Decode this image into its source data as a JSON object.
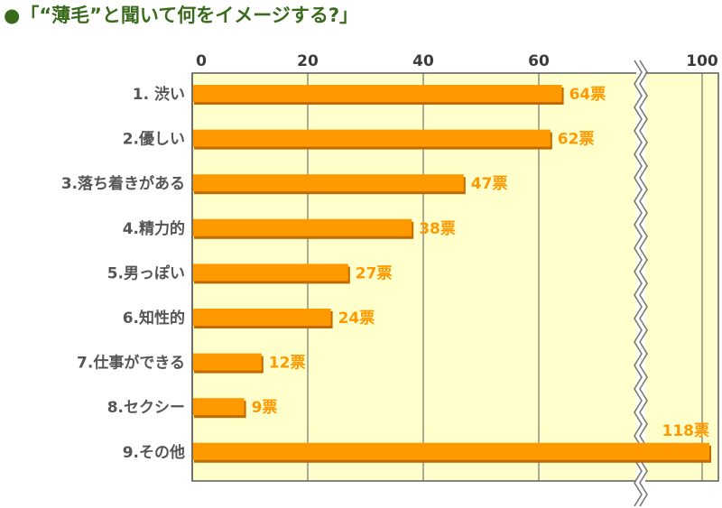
{
  "chart_data": {
    "type": "bar",
    "orientation": "horizontal",
    "title": "●「“薄毛”と聞いて何をイメージする?」",
    "x_ticks": [
      "0",
      "20",
      "40",
      "60",
      "100"
    ],
    "axis_break": true,
    "categories": [
      "1. 渋い",
      "2.優しい",
      "3.落ち着きがある",
      "4.精力的",
      "5.男っぽい",
      "6.知性的",
      "7.仕事ができる",
      "8.セクシー",
      "9.その他"
    ],
    "values": [
      64,
      62,
      47,
      38,
      27,
      24,
      12,
      9,
      118
    ],
    "value_labels": [
      "64票",
      "62票",
      "47票",
      "38票",
      "27票",
      "24票",
      "12票",
      "9票",
      "118票"
    ],
    "colors": {
      "bar": "#ff9900",
      "bar_shadow": "#c06a00",
      "plot_bg": "#ffffcc",
      "grid": "#5a5a5a",
      "label": "#ff9900",
      "title": "#3a6b1c"
    }
  }
}
